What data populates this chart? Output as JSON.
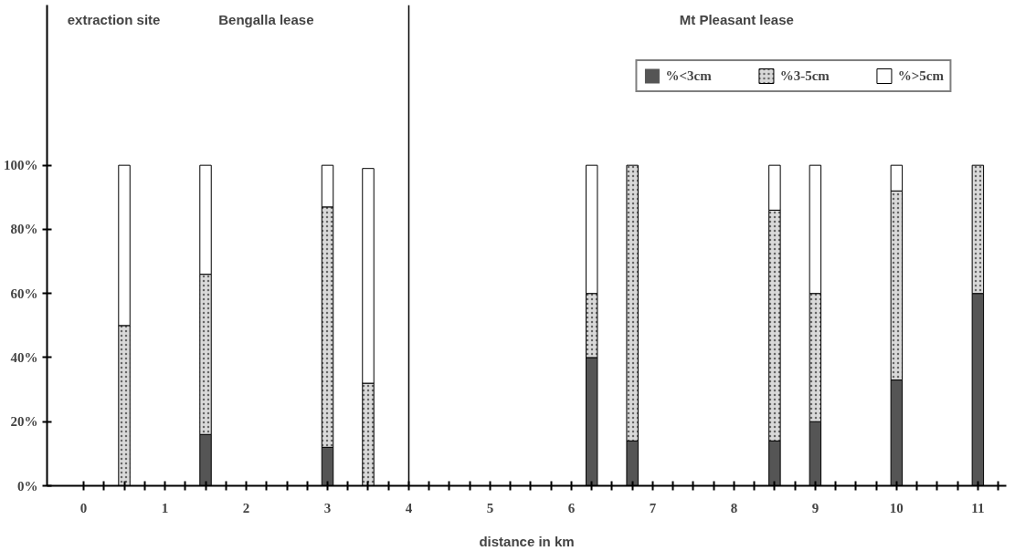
{
  "chart_data": {
    "type": "bar",
    "stacked": true,
    "xlabel": "distance in km",
    "x": [
      0.5,
      1.5,
      3,
      3.5,
      6.25,
      6.75,
      8.5,
      9,
      10,
      11
    ],
    "series": [
      {
        "name": "%<3cm",
        "color": "#555555",
        "values": [
          0,
          16,
          12,
          0,
          40,
          14,
          14,
          20,
          33,
          60
        ]
      },
      {
        "name": "%3-5cm",
        "color": "#d9d9d9",
        "values": [
          50,
          50,
          75,
          32,
          20,
          86,
          72,
          40,
          59,
          40
        ]
      },
      {
        "name": "%>5cm",
        "color": "#ffffff",
        "values": [
          50,
          34,
          13,
          67,
          40,
          0,
          14,
          40,
          8,
          0
        ]
      }
    ],
    "xlim": [
      -0.45,
      11.35
    ],
    "ylim": [
      0,
      150
    ],
    "xticks": [
      {
        "value": 0,
        "label": "0"
      },
      {
        "value": 0.25,
        "label": null
      },
      {
        "value": 0.5,
        "label": null
      },
      {
        "value": 0.75,
        "label": null
      },
      {
        "value": 1,
        "label": "1"
      },
      {
        "value": 1.25,
        "label": null
      },
      {
        "value": 1.5,
        "label": null
      },
      {
        "value": 1.75,
        "label": null
      },
      {
        "value": 2,
        "label": "2"
      },
      {
        "value": 2.25,
        "label": null
      },
      {
        "value": 2.5,
        "label": null
      },
      {
        "value": 2.75,
        "label": null
      },
      {
        "value": 3,
        "label": "3"
      },
      {
        "value": 3.25,
        "label": null
      },
      {
        "value": 3.5,
        "label": null
      },
      {
        "value": 3.75,
        "label": null
      },
      {
        "value": 4,
        "label": "4"
      },
      {
        "value": 4.25,
        "label": null
      },
      {
        "value": 4.5,
        "label": null
      },
      {
        "value": 4.75,
        "label": null
      },
      {
        "value": 5,
        "label": "5"
      },
      {
        "value": 5.25,
        "label": null
      },
      {
        "value": 5.5,
        "label": null
      },
      {
        "value": 5.75,
        "label": null
      },
      {
        "value": 6,
        "label": "6"
      },
      {
        "value": 6.25,
        "label": null
      },
      {
        "value": 6.5,
        "label": null
      },
      {
        "value": 6.75,
        "label": null
      },
      {
        "value": 7,
        "label": "7"
      },
      {
        "value": 7.25,
        "label": null
      },
      {
        "value": 7.5,
        "label": null
      },
      {
        "value": 7.75,
        "label": null
      },
      {
        "value": 8,
        "label": "8"
      },
      {
        "value": 8.25,
        "label": null
      },
      {
        "value": 8.5,
        "label": null
      },
      {
        "value": 8.75,
        "label": null
      },
      {
        "value": 9,
        "label": "9"
      },
      {
        "value": 9.25,
        "label": null
      },
      {
        "value": 9.5,
        "label": null
      },
      {
        "value": 9.75,
        "label": null
      },
      {
        "value": 10,
        "label": "10"
      },
      {
        "value": 10.25,
        "label": null
      },
      {
        "value": 10.5,
        "label": null
      },
      {
        "value": 10.75,
        "label": null
      },
      {
        "value": 11,
        "label": "11"
      },
      {
        "value": 11.25,
        "label": null
      }
    ],
    "yticks": [
      {
        "value": 0,
        "label": "0%"
      },
      {
        "value": 20,
        "label": "20%"
      },
      {
        "value": 40,
        "label": "40%"
      },
      {
        "value": 60,
        "label": "60%"
      },
      {
        "value": 80,
        "label": "80%"
      },
      {
        "value": 100,
        "label": "100%"
      }
    ],
    "ref_lines": [
      {
        "axis": "x",
        "value": 4,
        "label": null,
        "color": "#000000"
      }
    ],
    "annotations": [
      "extraction site",
      "Bengalla lease",
      "Mt Pleasant lease"
    ],
    "grid": false,
    "legend": "top right"
  }
}
